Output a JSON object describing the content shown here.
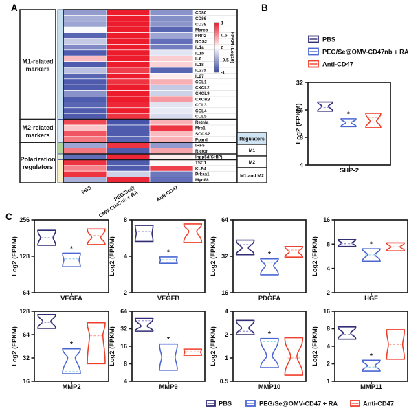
{
  "panels": {
    "a": "A",
    "b": "B",
    "c": "C"
  },
  "colors": {
    "pbs": "#322e76",
    "peg": "#4b67d2",
    "anti": "#f03f2b",
    "pbs_med": "#a095d8",
    "peg_med": "#a0d8f0",
    "anti_med": "#f8ac9e",
    "axis": "#1a1a1a",
    "hm_pos": "#ec1c2c",
    "hm_neg": "#3b4aa5",
    "table_header_bg": "#cfe3f3",
    "strip_m1": "#c5def0",
    "strip_m2": "#d9eaf6",
    "strip_reg_m1": "#aed59c",
    "strip_reg_m2": "#dcedd4",
    "strip_reg_both": "#f8f0c6"
  },
  "heatmap": {
    "groups": [
      {
        "label": [
          "M1-related",
          "markers"
        ]
      },
      {
        "label": [
          "M2-related",
          "markers"
        ]
      },
      {
        "label": [
          "Polarization",
          "regulators"
        ]
      }
    ],
    "col_labels": [
      [
        "PBS"
      ],
      [
        "PEG/Se@",
        "OMV-CD47nb + RA"
      ],
      [
        "Anti-CD47"
      ]
    ],
    "rows": [
      {
        "gene": "CD80",
        "values": [
          -0.55,
          1.0,
          -0.6
        ]
      },
      {
        "gene": "CD86",
        "values": [
          -0.45,
          1.0,
          -0.62
        ]
      },
      {
        "gene": "CD38",
        "values": [
          -0.5,
          1.0,
          -0.58
        ]
      },
      {
        "gene": "Marco",
        "values": [
          -0.03,
          1.0,
          -0.85
        ]
      },
      {
        "gene": "FRP2",
        "values": [
          -0.85,
          1.0,
          -0.5
        ]
      },
      {
        "gene": "NOS2",
        "values": [
          -0.3,
          1.0,
          -0.8
        ]
      },
      {
        "gene": "IL1a",
        "values": [
          -0.65,
          1.0,
          -0.72
        ]
      },
      {
        "gene": "IL1b",
        "values": [
          -0.9,
          1.0,
          -0.15
        ]
      },
      {
        "gene": "IL6",
        "values": [
          0.3,
          1.0,
          0.22
        ]
      },
      {
        "gene": "IL18",
        "values": [
          -0.9,
          1.0,
          0.2
        ]
      },
      {
        "gene": "IL23a",
        "values": [
          -0.35,
          0.85,
          -0.85
        ]
      },
      {
        "gene": "IL27",
        "values": [
          -0.85,
          1.0,
          0.08
        ]
      },
      {
        "gene": "CCL1",
        "values": [
          -0.9,
          0.9,
          0.35
        ]
      },
      {
        "gene": "CXCL2",
        "values": [
          -0.9,
          1.0,
          -0.3
        ]
      },
      {
        "gene": "CXCL9",
        "values": [
          -0.6,
          1.0,
          -0.25
        ]
      },
      {
        "gene": "CXCR3",
        "values": [
          -0.9,
          1.0,
          0.45
        ]
      },
      {
        "gene": "CCL3",
        "values": [
          -0.85,
          0.95,
          -0.15
        ]
      },
      {
        "gene": "CCL4",
        "values": [
          -0.9,
          1.0,
          -0.12
        ]
      },
      {
        "gene": "CCL5",
        "values": [
          -0.9,
          0.9,
          -0.2
        ]
      },
      {
        "gene": "Retnla",
        "values": [
          0.8,
          -0.95,
          0.35
        ]
      },
      {
        "gene": "Mrc1",
        "values": [
          0.25,
          -0.9,
          0.9
        ]
      },
      {
        "gene": "SOCS2",
        "values": [
          0.75,
          -0.9,
          0.3
        ]
      },
      {
        "gene": "Ppard",
        "values": [
          0.6,
          -0.85,
          0.35
        ]
      },
      {
        "gene": "IRF5",
        "values": [
          -0.5,
          0.9,
          -0.55
        ]
      },
      {
        "gene": "Rictor",
        "values": [
          0.6,
          -0.9,
          0.4
        ]
      },
      {
        "gene": "Inpp5d(SHIP)",
        "values": [
          -0.8,
          0.95,
          0.08
        ]
      },
      {
        "gene": "TSC1",
        "values": [
          0.9,
          -0.9,
          0.04
        ]
      },
      {
        "gene": "KLF4",
        "values": [
          0.55,
          -0.9,
          0.85
        ]
      },
      {
        "gene": "Prkaa1",
        "values": [
          0.9,
          -0.25,
          -0.75
        ]
      },
      {
        "gene": "Myd88",
        "values": [
          -0.45,
          0.95,
          -0.8
        ]
      }
    ],
    "section_breaks": [
      19,
      23,
      25,
      26
    ],
    "strip": [
      {
        "color_key": "strip_m1",
        "from": 0,
        "to": 19
      },
      {
        "color_key": "strip_m2",
        "from": 19,
        "to": 23
      },
      {
        "color_key": "strip_reg_m1",
        "from": 23,
        "to": 25
      },
      {
        "color_key": "strip_reg_m2",
        "from": 25,
        "to": 26
      },
      {
        "color_key": "strip_reg_both",
        "from": 26,
        "to": 30
      }
    ],
    "colorbar": {
      "title": "FPKM (Log10)",
      "ticks": [
        "1",
        "0.5",
        "0",
        "-0.5",
        "-1"
      ]
    },
    "regulators_table": {
      "header": "Regulators",
      "cells": [
        "M1",
        "M2",
        "M1 and M2"
      ]
    }
  },
  "legend_b": {
    "items": [
      {
        "label": "PBS",
        "color_key": "pbs"
      },
      {
        "label": "PEG/Se@OMV-CD47nb + RA",
        "color_key": "peg"
      },
      {
        "label": "Anti-CD47",
        "color_key": "anti"
      }
    ]
  },
  "legend_bottom": {
    "items": [
      {
        "label": "PBS",
        "color_key": "pbs"
      },
      {
        "label": "PEG/Se@OMV-CD47 + RA",
        "color_key": "peg"
      },
      {
        "label": "Anti-CD47",
        "color_key": "anti"
      }
    ]
  },
  "chart_data": [
    {
      "id": "SHP-2",
      "panel": "B",
      "type": "violin",
      "ylabel": "Log2 (FPKM)",
      "xlabel": "SHP-2",
      "yticks": [
        32,
        16,
        8,
        4
      ],
      "series": [
        {
          "group": "PBS",
          "lo": 15.5,
          "med": 17.0,
          "hi": 19.5,
          "sig": false,
          "waist": 0.4,
          "wpos": 0.45
        },
        {
          "group": "PEG/Se@OMV-CD47nb + RA",
          "lo": 10.5,
          "med": 11.8,
          "hi": 12.8,
          "sig": true,
          "waist": 0.35,
          "wpos": 0.5
        },
        {
          "group": "Anti-CD47",
          "lo": 10.2,
          "med": 13.2,
          "hi": 14.7,
          "sig": false,
          "waist": 0.42,
          "wpos": 0.55
        }
      ]
    },
    {
      "id": "VEGFA",
      "panel": "C",
      "type": "violin",
      "ylabel": "Log2 (FPKM)",
      "xlabel": "VEGFA",
      "yticks": [
        256,
        128,
        64
      ],
      "series": [
        {
          "group": "PBS",
          "lo": 158,
          "med": 182,
          "hi": 210,
          "sig": false,
          "waist": 0.7,
          "wpos": 0.5
        },
        {
          "group": "PEG/Se@OMV-CD47nb + RA",
          "lo": 105,
          "med": 122,
          "hi": 136,
          "sig": true,
          "waist": 0.85,
          "wpos": 0.5
        },
        {
          "group": "Anti-CD47",
          "lo": 160,
          "med": 190,
          "hi": 215,
          "sig": false,
          "waist": 0.5,
          "wpos": 0.55
        }
      ]
    },
    {
      "id": "VEGFB",
      "panel": "C",
      "type": "violin",
      "ylabel": "Log2 (FPKM)",
      "xlabel": "VEGFB",
      "yticks": [
        8,
        4,
        2
      ],
      "series": [
        {
          "group": "PBS",
          "lo": 5.3,
          "med": 6.4,
          "hi": 7.2,
          "sig": false,
          "waist": 0.88,
          "wpos": 0.5
        },
        {
          "group": "PEG/Se@OMV-CD47nb + RA",
          "lo": 3.5,
          "med": 3.75,
          "hi": 3.95,
          "sig": true,
          "waist": 0.88,
          "wpos": 0.5
        },
        {
          "group": "Anti-CD47",
          "lo": 5.2,
          "med": 6.7,
          "hi": 7.4,
          "sig": false,
          "waist": 0.45,
          "wpos": 0.4
        }
      ]
    },
    {
      "id": "PDGFA",
      "panel": "C",
      "type": "violin",
      "ylabel": "Log2 (FPKM)",
      "xlabel": "PDGFA",
      "yticks": [
        64,
        32,
        16
      ],
      "series": [
        {
          "group": "PBS",
          "lo": 33,
          "med": 40,
          "hi": 43.5,
          "sig": false,
          "waist": 0.35,
          "wpos": 0.55
        },
        {
          "group": "PEG/Se@OMV-CD47nb + RA",
          "lo": 22.5,
          "med": 28.5,
          "hi": 30.5,
          "sig": true,
          "waist": 0.45,
          "wpos": 0.4
        },
        {
          "group": "Anti-CD47",
          "lo": 31.5,
          "med": 36,
          "hi": 38.5,
          "sig": false,
          "waist": 0.5,
          "wpos": 0.5
        }
      ]
    },
    {
      "id": "HGF",
      "panel": "C",
      "type": "violin",
      "ylabel": "Log2 (FPKM)",
      "xlabel": "HGF",
      "yticks": [
        16,
        8,
        4,
        2
      ],
      "series": [
        {
          "group": "PBS",
          "lo": 7.5,
          "med": 8.1,
          "hi": 9.1,
          "sig": false,
          "waist": 0.55,
          "wpos": 0.5
        },
        {
          "group": "PEG/Se@OMV-CD47nb + RA",
          "lo": 4.9,
          "med": 5.9,
          "hi": 7.0,
          "sig": true,
          "waist": 0.4,
          "wpos": 0.45
        },
        {
          "group": "Anti-CD47",
          "lo": 6.6,
          "med": 7.4,
          "hi": 8.3,
          "sig": false,
          "waist": 0.5,
          "wpos": 0.5
        }
      ]
    },
    {
      "id": "MMP2",
      "panel": "C",
      "type": "violin",
      "ylabel": "Log2 (FPKM)",
      "xlabel": "MMP2",
      "yticks": [
        128,
        64,
        32,
        16
      ],
      "series": [
        {
          "group": "PBS",
          "lo": 77,
          "med": 92,
          "hi": 116,
          "sig": false,
          "waist": 0.45,
          "wpos": 0.5
        },
        {
          "group": "PEG/Se@OMV-CD47nb + RA",
          "lo": 20,
          "med": 21.5,
          "hi": 42,
          "sig": true,
          "waist": 0.42,
          "wpos": 0.35
        },
        {
          "group": "Anti-CD47",
          "lo": 27,
          "med": 62,
          "hi": 91,
          "sig": false,
          "waist": 0.75,
          "wpos": 0.3
        }
      ]
    },
    {
      "id": "MMP9",
      "panel": "C",
      "type": "violin",
      "ylabel": "Log2 (FPKM)",
      "xlabel": "MMP9",
      "yticks": [
        64,
        32,
        16,
        8,
        4
      ],
      "series": [
        {
          "group": "PBS",
          "lo": 29,
          "med": 44,
          "hi": 48,
          "sig": false,
          "waist": 0.35,
          "wpos": 0.6
        },
        {
          "group": "PEG/Se@OMV-CD47nb + RA",
          "lo": 6.2,
          "med": 10.5,
          "hi": 17.5,
          "sig": true,
          "waist": 0.75,
          "wpos": 0.5
        },
        {
          "group": "Anti-CD47",
          "lo": 11.2,
          "med": 12.8,
          "hi": 14.3,
          "sig": false,
          "waist": 0.88,
          "wpos": 0.5
        }
      ]
    },
    {
      "id": "MMP10",
      "panel": "C",
      "type": "violin",
      "ylabel": "Log2 (FPKM)",
      "xlabel": "MMP10",
      "yticks": [
        4,
        2,
        1,
        0.5
      ],
      "series": [
        {
          "group": "PBS",
          "lo": 2.0,
          "med": 2.2,
          "hi": 3.05,
          "sig": false,
          "waist": 0.4,
          "wpos": 0.55
        },
        {
          "group": "PEG/Se@OMV-CD47nb + RA",
          "lo": 0.75,
          "med": 1.62,
          "hi": 1.78,
          "sig": true,
          "waist": 0.32,
          "wpos": 0.6
        },
        {
          "group": "Anti-CD47",
          "lo": 0.6,
          "med": 1.0,
          "hi": 1.82,
          "sig": false,
          "waist": 0.35,
          "wpos": 0.5
        }
      ]
    },
    {
      "id": "MMP11",
      "panel": "C",
      "type": "violin",
      "ylabel": "Log2 (FPKM)",
      "xlabel": "MMP11",
      "yticks": [
        16,
        8,
        4,
        2,
        1
      ],
      "series": [
        {
          "group": "PBS",
          "lo": 5.3,
          "med": 6.4,
          "hi": 8.6,
          "sig": false,
          "waist": 0.4,
          "wpos": 0.5
        },
        {
          "group": "PEG/Se@OMV-CD47nb + RA",
          "lo": 1.5,
          "med": 1.75,
          "hi": 2.3,
          "sig": true,
          "waist": 0.42,
          "wpos": 0.5
        },
        {
          "group": "Anti-CD47",
          "lo": 2.4,
          "med": 4.3,
          "hi": 7.7,
          "sig": false,
          "waist": 0.8,
          "wpos": 0.5
        }
      ]
    }
  ]
}
